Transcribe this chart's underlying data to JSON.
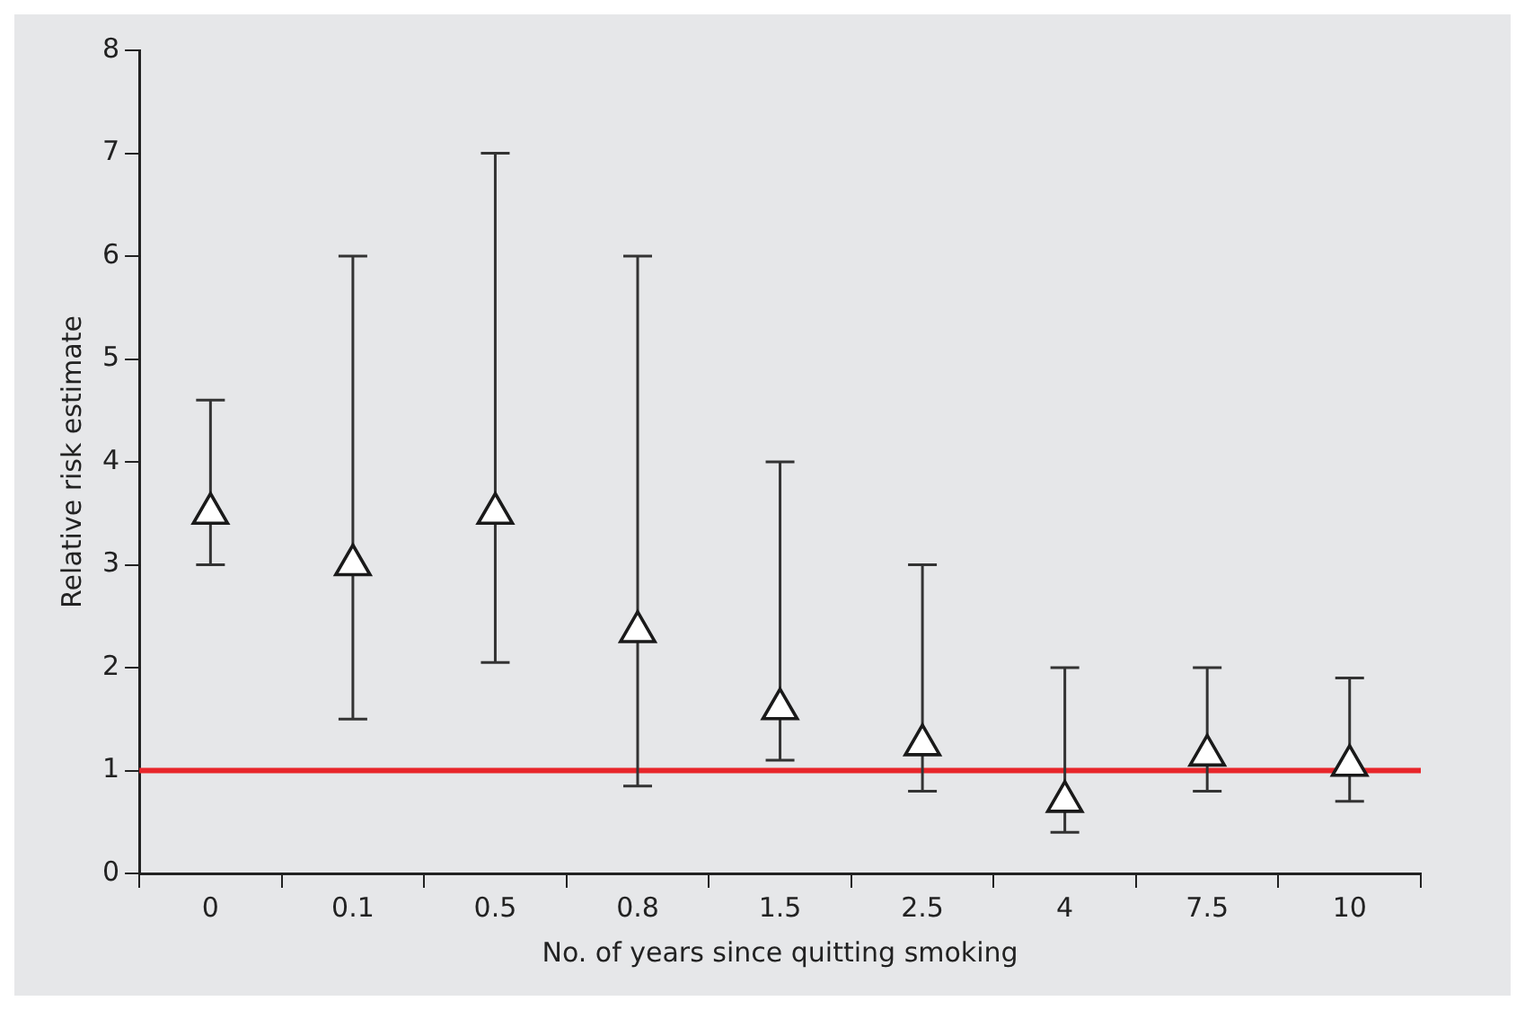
{
  "chart_data": {
    "type": "scatter",
    "xlabel": "No. of years since quitting smoking",
    "ylabel": "Relative risk estimate",
    "categories": [
      "0",
      "0.1",
      "0.5",
      "0.8",
      "1.5",
      "2.5",
      "4",
      "7.5",
      "10"
    ],
    "series": [
      {
        "color": "#ffffff",
        "values": [
          3.5,
          3.0,
          3.5,
          2.35,
          1.6,
          1.25,
          0.7,
          1.15,
          1.05
        ],
        "errors": [
          [
            3.0,
            4.6
          ],
          [
            1.5,
            6.0
          ],
          [
            2.05,
            7.0
          ],
          [
            0.85,
            6.0
          ],
          [
            1.1,
            4.0
          ],
          [
            0.8,
            3.0
          ],
          [
            0.4,
            2.0
          ],
          [
            0.8,
            2.0
          ],
          [
            0.7,
            1.9
          ]
        ]
      }
    ],
    "ylim": [
      0,
      8
    ],
    "yticks": [
      0,
      1,
      2,
      3,
      4,
      5,
      6,
      7,
      8
    ],
    "grid": false,
    "legend": false,
    "marker": "triangle",
    "ref_lines": [
      {
        "axis": "y",
        "value": 1,
        "color": "#e8262b",
        "line_style": "solid"
      }
    ]
  }
}
